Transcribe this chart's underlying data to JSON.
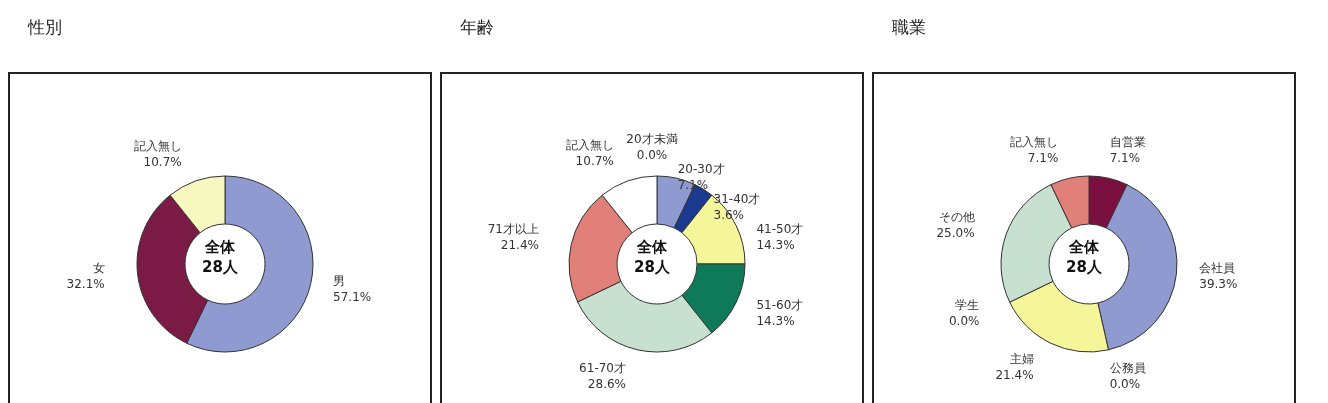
{
  "chart_data": [
    {
      "type": "donut",
      "title": "性別",
      "categories": [
        "男",
        "女",
        "記入無し"
      ],
      "values": [
        57.1,
        32.1,
        10.7
      ],
      "colors": [
        "#8f9ad0",
        "#7a1a45",
        "#f7f7c0"
      ],
      "value_labels": [
        "57.1%",
        "32.1%",
        "10.7%"
      ],
      "annotations": [
        "全体",
        "28人"
      ]
    },
    {
      "type": "donut",
      "title": "年齢",
      "categories": [
        "20才未満",
        "20-30才",
        "31-40才",
        "41-50才",
        "51-60才",
        "61-70才",
        "71才以上",
        "記入無し"
      ],
      "values": [
        0.0,
        7.1,
        3.6,
        14.3,
        14.3,
        28.6,
        21.4,
        10.7
      ],
      "colors": [
        "#c0c0c0",
        "#8f9ad0",
        "#1a3a8f",
        "#f5f59a",
        "#0f7a5a",
        "#c8e0d0",
        "#e08078",
        "#ffffff"
      ],
      "value_labels": [
        "0.0%",
        "7.1%",
        "3.6%",
        "14.3%",
        "14.3%",
        "28.6%",
        "21.4%",
        "10.7%"
      ],
      "annotations": [
        "全体",
        "28人"
      ]
    },
    {
      "type": "donut",
      "title": "職業",
      "categories": [
        "自営業",
        "会社員",
        "公務員",
        "主婦",
        "学生",
        "その他",
        "記入無し"
      ],
      "values": [
        7.1,
        39.3,
        0.0,
        21.4,
        0.0,
        25.0,
        7.1
      ],
      "colors": [
        "#7a1040",
        "#8f9ad0",
        "#c0c0c0",
        "#f5f59a",
        "#a0a0a0",
        "#c8e0d0",
        "#e08078"
      ],
      "value_labels": [
        "7.1%",
        "39.3%",
        "0.0%",
        "21.4%",
        "0.0%",
        "25.0%",
        "7.1%"
      ],
      "annotations": [
        "全体",
        "28人"
      ]
    }
  ]
}
